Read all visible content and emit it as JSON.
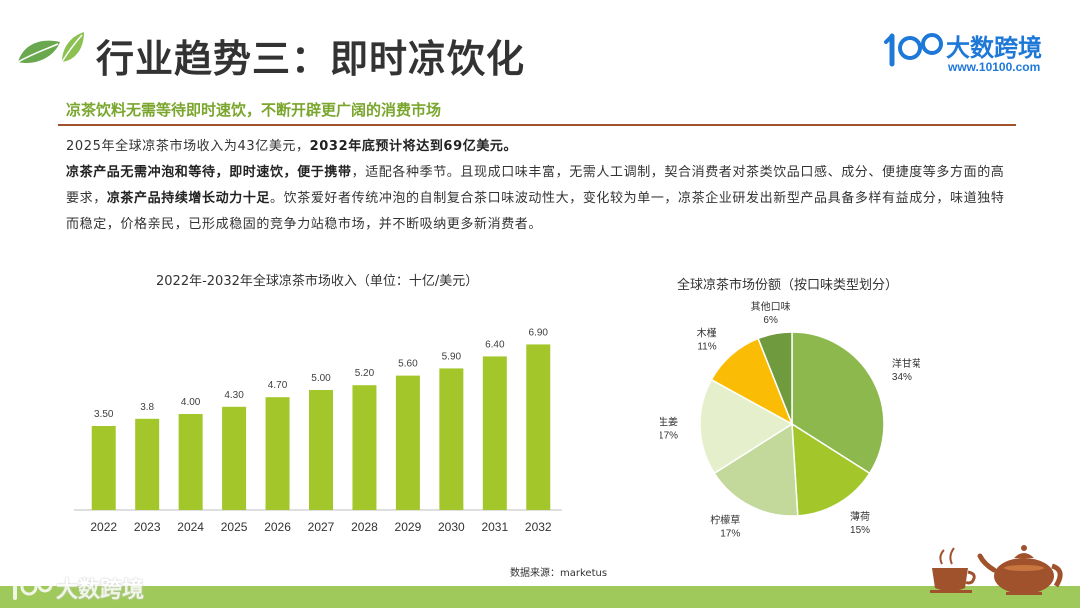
{
  "header": {
    "title": "行业趋势三：即时凉饮化",
    "brand_name": "大数跨境",
    "brand_url": "www.10100.com"
  },
  "subtitle": "凉茶饮料无需等待即时速饮，不断开辟更广阔的消费市场",
  "body": {
    "p1_a": "2025年全球凉茶市场收入为43亿美元，",
    "p1_b": "2032年底预计将达到69亿美元。",
    "p2_a": "凉茶产品无需冲泡和等待，即时速饮，便于携带",
    "p2_b": "，适配各种季节。且现成口味丰富，无需人工调制，契合消费者对茶类饮品口感、成分、便捷度等多方面的高要求，",
    "p2_c": "凉茶产品持续增长动力十足",
    "p2_d": "。饮茶爱好者传统冲泡的自制复合茶口味波动性大，变化较为单一，凉茶企业研发出新型产品具备多样有益成分，味道独特而稳定，价格亲民，已形成稳固的竞争力站稳市场，并不断吸纳更多新消费者。"
  },
  "chart_data": [
    {
      "type": "bar",
      "title": "2022年-2032年全球凉茶市场收入（单位：十亿/美元）",
      "categories": [
        "2022",
        "2023",
        "2024",
        "2025",
        "2026",
        "2027",
        "2028",
        "2029",
        "2030",
        "2031",
        "2032"
      ],
      "values": [
        3.5,
        3.8,
        4.0,
        4.3,
        4.7,
        5.0,
        5.2,
        5.6,
        5.9,
        6.4,
        6.9
      ],
      "value_labels": [
        "3.50",
        "3.8",
        "4.00",
        "4.30",
        "4.70",
        "5.00",
        "5.20",
        "5.60",
        "5.90",
        "6.40",
        "6.90"
      ],
      "ylim": [
        0,
        7.5
      ],
      "grid": false,
      "color": "#a3c72b"
    },
    {
      "type": "pie",
      "title": "全球凉茶市场份额（按口味类型划分）",
      "slices": [
        {
          "label": "洋甘菊",
          "pct_label": "34%",
          "value": 34,
          "color": "#8cb84e"
        },
        {
          "label": "薄荷",
          "pct_label": "15%",
          "value": 15,
          "color": "#a3c72b"
        },
        {
          "label": "柠檬草",
          "pct_label": "17%",
          "value": 17,
          "color": "#c3d99c"
        },
        {
          "label": "生姜",
          "pct_label": "17%",
          "value": 17,
          "color": "#e6efcc"
        },
        {
          "label": "木槿",
          "pct_label": "11%",
          "value": 11,
          "color": "#fbbc05"
        },
        {
          "label": "其他口味",
          "pct_label": "6%",
          "value": 6,
          "color": "#6f9a3e"
        }
      ]
    }
  ],
  "source": "数据来源：marketus",
  "footer": {
    "watermark": "大数跨境"
  },
  "icons": {
    "leaf": "leaf-icon",
    "brand": "brand-logo-icon",
    "teapot": "teapot-icon"
  }
}
